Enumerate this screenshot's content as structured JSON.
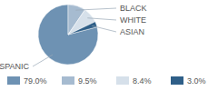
{
  "chart_data": {
    "type": "pie",
    "categories": [
      "HISPANIC",
      "BLACK",
      "WHITE",
      "ASIAN"
    ],
    "values": [
      79.0,
      9.5,
      8.4,
      3.0
    ],
    "value_labels": [
      "79.0%",
      "9.5%",
      "8.4%",
      "3.0%"
    ],
    "colors": [
      "#6e92b3",
      "#a6bbd0",
      "#d6e0ea",
      "#2f5f88"
    ],
    "legend": "bottom"
  }
}
